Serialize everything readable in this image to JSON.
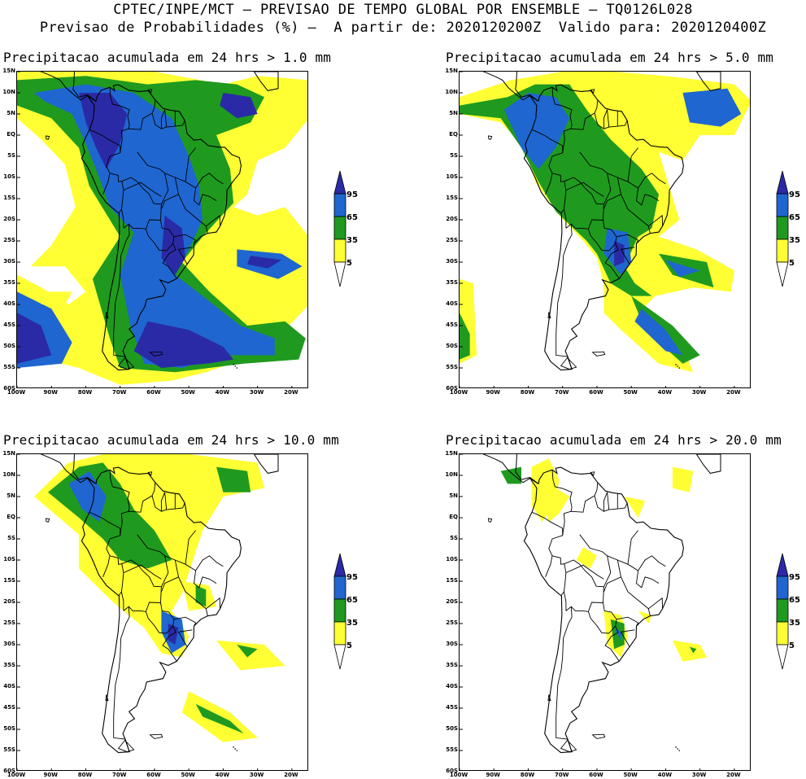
{
  "header": {
    "line1": "CPTEC/INPE/MCT – PREVISAO DE TEMPO GLOBAL POR ENSEMBLE – TQ0126L028",
    "line2": "Previsao de Probabilidades (%) –  A partir de: 2020120200Z  Valido para: 2020120400Z"
  },
  "panels": [
    {
      "title": "Precipitacao acumulada em 24 hrs > 1.0 mm",
      "threshold_mm": 1.0
    },
    {
      "title": "Precipitacao acumulada em 24 hrs > 5.0 mm",
      "threshold_mm": 5.0
    },
    {
      "title": "Precipitacao acumulada em 24 hrs > 10.0 mm",
      "threshold_mm": 10.0
    },
    {
      "title": "Precipitacao acumulada em 24 hrs > 20.0 mm",
      "threshold_mm": 20.0
    }
  ],
  "lat_labels": [
    "15N",
    "10N",
    "5N",
    "EQ",
    "5S",
    "10S",
    "15S",
    "20S",
    "25S",
    "30S",
    "35S",
    "40S",
    "45S",
    "50S",
    "55S",
    "60S"
  ],
  "lon_labels": [
    "100W",
    "90W",
    "80W",
    "70W",
    "60W",
    "50W",
    "40W",
    "30W",
    "20W"
  ],
  "colorbar": {
    "levels": [
      "95",
      "65",
      "35",
      "5"
    ],
    "colors": {
      "c95": "#2a2aa6",
      "c65": "#1f66d0",
      "c35": "#1f9a1f",
      "c5": "#ffff33"
    }
  }
}
